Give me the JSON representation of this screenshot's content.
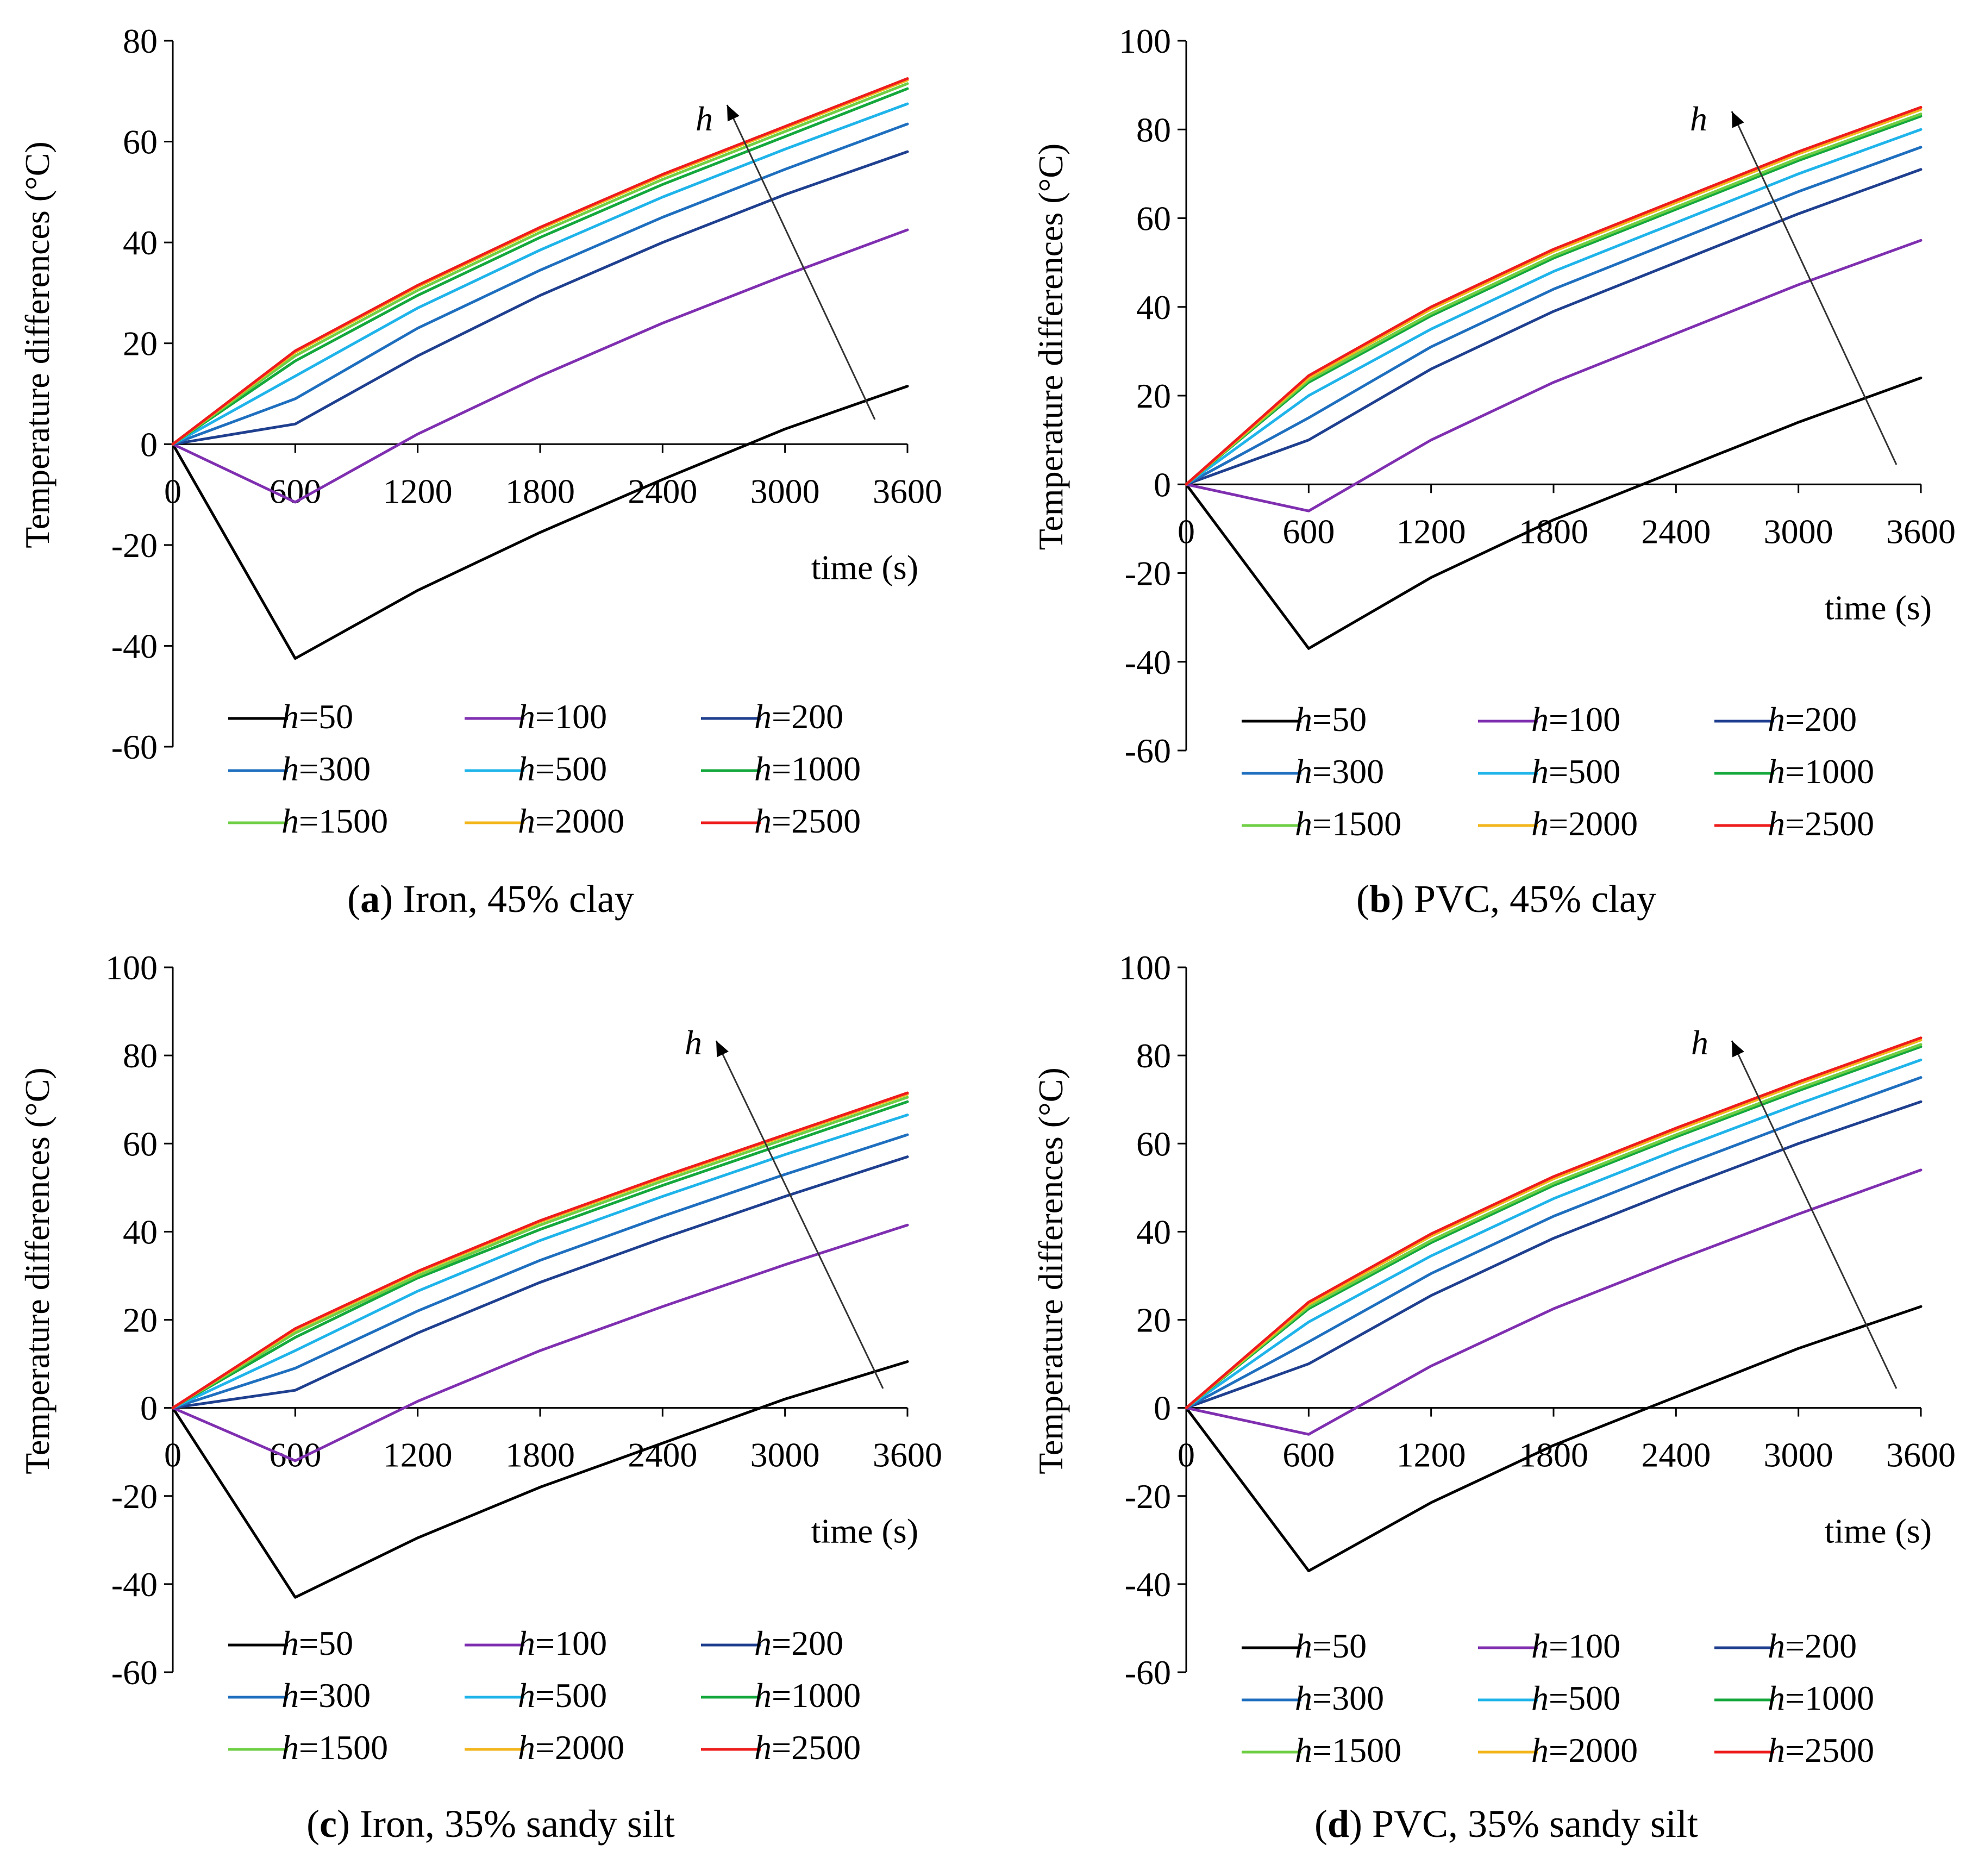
{
  "figure": {
    "legend_prefix": "h",
    "arrow_label": "h",
    "series_colors": [
      "#000000",
      "#7f2fb0",
      "#1f3f8f",
      "#1f6fbf",
      "#1fb4ea",
      "#14a83c",
      "#6fcf44",
      "#f2b51a",
      "#ee1c1c"
    ]
  },
  "chart_data": [
    {
      "type": "line",
      "panel_letter": "a",
      "caption": "Iron, 45% clay",
      "xlabel": "time (s)",
      "ylabel": "Temperature differences (°C)",
      "xlim": [
        0,
        3600
      ],
      "ylim": [
        -60,
        80
      ],
      "yticks": [
        -60,
        -40,
        -20,
        0,
        20,
        40,
        60,
        80
      ],
      "xticks": [
        0,
        600,
        1200,
        1800,
        2400,
        3000,
        3600
      ],
      "x": [
        0,
        600,
        1200,
        1800,
        2400,
        3000,
        3600
      ],
      "series": [
        {
          "name": "=50",
          "values": [
            0,
            -42.5,
            -29,
            -17.5,
            -7,
            3,
            11.5
          ]
        },
        {
          "name": "=100",
          "values": [
            0,
            -11.5,
            2,
            13.5,
            24,
            33.5,
            42.5
          ]
        },
        {
          "name": "=200",
          "values": [
            0,
            4,
            17.5,
            29.5,
            40,
            49.5,
            58
          ]
        },
        {
          "name": "=300",
          "values": [
            0,
            9,
            23,
            34.5,
            45,
            54.5,
            63.5
          ]
        },
        {
          "name": "=500",
          "values": [
            0,
            13.5,
            27,
            38.5,
            49,
            58.5,
            67.5
          ]
        },
        {
          "name": "=1000",
          "values": [
            0,
            16.5,
            29.5,
            41,
            51.5,
            61,
            70.5
          ]
        },
        {
          "name": "=1500",
          "values": [
            0,
            17.5,
            30.5,
            42,
            52.5,
            62,
            71.5
          ]
        },
        {
          "name": "=2000",
          "values": [
            0,
            18.2,
            31.2,
            42.7,
            53.2,
            62.7,
            72.2
          ]
        },
        {
          "name": "=2500",
          "values": [
            0,
            18.5,
            31.5,
            43,
            53.5,
            63,
            72.5
          ]
        }
      ]
    },
    {
      "type": "line",
      "panel_letter": "b",
      "caption": "PVC, 45% clay",
      "xlabel": "time (s)",
      "ylabel": "Temperature differences (°C)",
      "xlim": [
        0,
        3600
      ],
      "ylim": [
        -60,
        100
      ],
      "yticks": [
        -60,
        -40,
        -20,
        0,
        20,
        40,
        60,
        80,
        100
      ],
      "xticks": [
        0,
        600,
        1200,
        1800,
        2400,
        3000,
        3600
      ],
      "x": [
        0,
        600,
        1200,
        1800,
        2400,
        3000,
        3600
      ],
      "series": [
        {
          "name": "=50",
          "values": [
            0,
            -37,
            -21,
            -8,
            3,
            14,
            24
          ]
        },
        {
          "name": "=100",
          "values": [
            0,
            -6,
            10,
            23,
            34,
            45,
            55
          ]
        },
        {
          "name": "=200",
          "values": [
            0,
            10,
            26,
            39,
            50,
            61,
            71
          ]
        },
        {
          "name": "=300",
          "values": [
            0,
            15,
            31,
            44,
            55,
            66,
            76
          ]
        },
        {
          "name": "=500",
          "values": [
            0,
            20,
            35,
            48,
            59,
            70,
            80
          ]
        },
        {
          "name": "=1000",
          "values": [
            0,
            23,
            38,
            51,
            62,
            73,
            83
          ]
        },
        {
          "name": "=1500",
          "values": [
            0,
            23.5,
            38.5,
            51.5,
            62.5,
            73.5,
            83.5
          ]
        },
        {
          "name": "=2000",
          "values": [
            0,
            24,
            39.5,
            52.5,
            63.5,
            74.5,
            84.5
          ]
        },
        {
          "name": "=2500",
          "values": [
            0,
            24.5,
            40,
            53,
            64,
            75,
            85
          ]
        }
      ]
    },
    {
      "type": "line",
      "panel_letter": "c",
      "caption": "Iron, 35% sandy silt",
      "xlabel": "time (s)",
      "ylabel": "Temperature differences (°C)",
      "xlim": [
        0,
        3600
      ],
      "ylim": [
        -60,
        100
      ],
      "yticks": [
        -60,
        -40,
        -20,
        0,
        20,
        40,
        60,
        80,
        100
      ],
      "xticks": [
        0,
        600,
        1200,
        1800,
        2400,
        3000,
        3600
      ],
      "x": [
        0,
        600,
        1200,
        1800,
        2400,
        3000,
        3600
      ],
      "series": [
        {
          "name": "=50",
          "values": [
            0,
            -43,
            -29.5,
            -18,
            -8,
            2,
            10.5
          ]
        },
        {
          "name": "=100",
          "values": [
            0,
            -12,
            1.5,
            13,
            23,
            32.5,
            41.5
          ]
        },
        {
          "name": "=200",
          "values": [
            0,
            4,
            17,
            28.5,
            38.5,
            48,
            57
          ]
        },
        {
          "name": "=300",
          "values": [
            0,
            9,
            22,
            33.5,
            43.5,
            53,
            62
          ]
        },
        {
          "name": "=500",
          "values": [
            0,
            13,
            26.5,
            38,
            48,
            57.5,
            66.5
          ]
        },
        {
          "name": "=1000",
          "values": [
            0,
            16,
            29.5,
            40.5,
            50.5,
            60,
            69.5
          ]
        },
        {
          "name": "=1500",
          "values": [
            0,
            17,
            30,
            41.5,
            51.5,
            61,
            70.5
          ]
        },
        {
          "name": "=2000",
          "values": [
            0,
            17.7,
            30.7,
            42.2,
            52.2,
            61.7,
            71.2
          ]
        },
        {
          "name": "=2500",
          "values": [
            0,
            18,
            31,
            42.5,
            52.5,
            62,
            71.5
          ]
        }
      ]
    },
    {
      "type": "line",
      "panel_letter": "d",
      "caption": "PVC, 35% sandy silt",
      "xlabel": "time (s)",
      "ylabel": "Temperature differences (°C)",
      "xlim": [
        0,
        3600
      ],
      "ylim": [
        -60,
        100
      ],
      "yticks": [
        -60,
        -40,
        -20,
        0,
        20,
        40,
        60,
        80,
        100
      ],
      "xticks": [
        0,
        600,
        1200,
        1800,
        2400,
        3000,
        3600
      ],
      "x": [
        0,
        600,
        1200,
        1800,
        2400,
        3000,
        3600
      ],
      "series": [
        {
          "name": "=50",
          "values": [
            0,
            -37,
            -21.5,
            -8.5,
            2.5,
            13.5,
            23
          ]
        },
        {
          "name": "=100",
          "values": [
            0,
            -6,
            9.5,
            22.5,
            33.5,
            44,
            54
          ]
        },
        {
          "name": "=200",
          "values": [
            0,
            10,
            25.5,
            38.5,
            49.5,
            60,
            69.5
          ]
        },
        {
          "name": "=300",
          "values": [
            0,
            15,
            30.5,
            43.5,
            54.5,
            65,
            75
          ]
        },
        {
          "name": "=500",
          "values": [
            0,
            19.5,
            34.5,
            47.5,
            58.5,
            69,
            79
          ]
        },
        {
          "name": "=1000",
          "values": [
            0,
            22.5,
            37.5,
            50.5,
            61.5,
            72,
            82
          ]
        },
        {
          "name": "=1500",
          "values": [
            0,
            23,
            38,
            51,
            62,
            72.5,
            82.5
          ]
        },
        {
          "name": "=2000",
          "values": [
            0,
            23.5,
            39,
            52,
            63,
            73.5,
            83.5
          ]
        },
        {
          "name": "=2500",
          "values": [
            0,
            24,
            39.5,
            52.5,
            63.5,
            74,
            84
          ]
        }
      ]
    }
  ]
}
